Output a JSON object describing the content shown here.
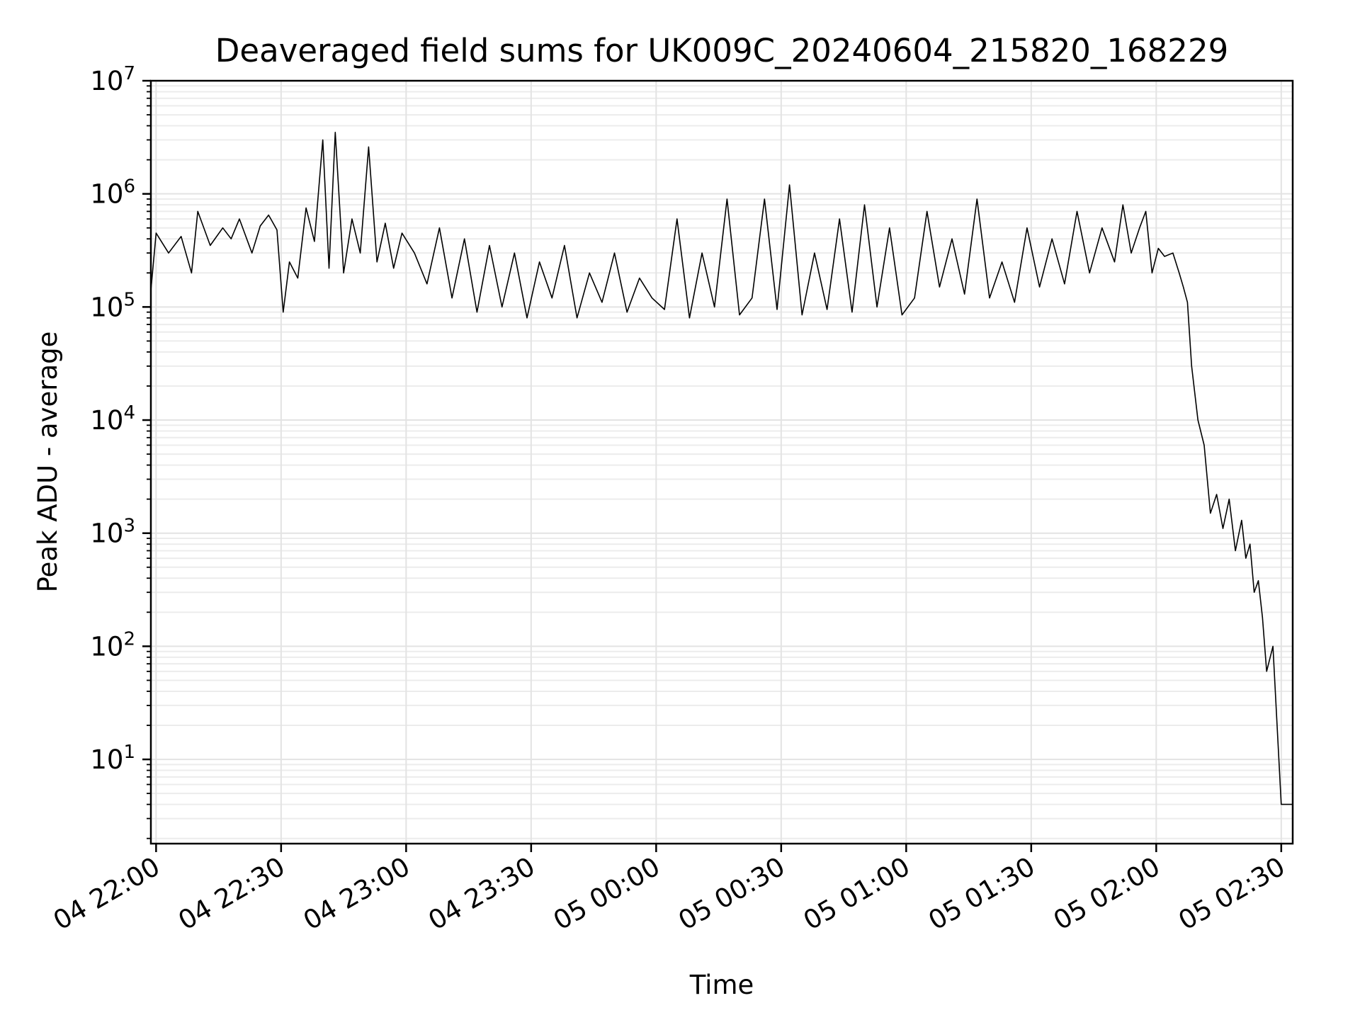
{
  "chart_data": {
    "type": "line",
    "title": "Deaveraged field sums for UK009C_20240604_215820_168229",
    "xlabel": "Time",
    "ylabel": "Peak ADU - average",
    "yscale": "log",
    "ylim": [
      1.8,
      10000000
    ],
    "xlim": [
      "04 21:58:45",
      "05 02:32:45"
    ],
    "grid": true,
    "line_color": "#000000",
    "x_ticks": [
      "04 22:00",
      "04 22:30",
      "04 23:00",
      "04 23:30",
      "05 00:00",
      "05 00:30",
      "05 01:00",
      "05 01:30",
      "05 02:00",
      "05 02:30"
    ],
    "y_ticks": [
      {
        "base": "10",
        "exp": "1",
        "value": 10
      },
      {
        "base": "10",
        "exp": "2",
        "value": 100
      },
      {
        "base": "10",
        "exp": "3",
        "value": 1000
      },
      {
        "base": "10",
        "exp": "4",
        "value": 10000
      },
      {
        "base": "10",
        "exp": "5",
        "value": 100000
      },
      {
        "base": "10",
        "exp": "6",
        "value": 1000000
      },
      {
        "base": "10",
        "exp": "7",
        "value": 10000000
      }
    ],
    "x": [
      "04 21:58:45",
      "04 22:00:00",
      "04 22:03:00",
      "04 22:06:00",
      "04 22:08:30",
      "04 22:10:00",
      "04 22:13:00",
      "04 22:16:00",
      "04 22:18:00",
      "04 22:20:00",
      "04 22:23:00",
      "04 22:25:00",
      "04 22:27:00",
      "04 22:29:00",
      "04 22:30:30",
      "04 22:32:00",
      "04 22:34:00",
      "04 22:36:00",
      "04 22:38:00",
      "04 22:40:00",
      "04 22:41:30",
      "04 22:43:00",
      "04 22:45:00",
      "04 22:47:00",
      "04 22:49:00",
      "04 22:51:00",
      "04 22:53:00",
      "04 22:55:00",
      "04 22:57:00",
      "04 22:59:00",
      "04 23:02:00",
      "04 23:05:00",
      "04 23:08:00",
      "04 23:11:00",
      "04 23:14:00",
      "04 23:17:00",
      "04 23:20:00",
      "04 23:23:00",
      "04 23:26:00",
      "04 23:29:00",
      "04 23:32:00",
      "04 23:35:00",
      "04 23:38:00",
      "04 23:41:00",
      "04 23:44:00",
      "04 23:47:00",
      "04 23:50:00",
      "04 23:53:00",
      "04 23:56:00",
      "04 23:59:00",
      "05 00:02:00",
      "05 00:05:00",
      "05 00:08:00",
      "05 00:11:00",
      "05 00:14:00",
      "05 00:17:00",
      "05 00:20:00",
      "05 00:23:00",
      "05 00:26:00",
      "05 00:29:00",
      "05 00:32:00",
      "05 00:35:00",
      "05 00:38:00",
      "05 00:41:00",
      "05 00:44:00",
      "05 00:47:00",
      "05 00:50:00",
      "05 00:53:00",
      "05 00:56:00",
      "05 00:59:00",
      "05 01:02:00",
      "05 01:05:00",
      "05 01:08:00",
      "05 01:11:00",
      "05 01:14:00",
      "05 01:17:00",
      "05 01:20:00",
      "05 01:23:00",
      "05 01:26:00",
      "05 01:29:00",
      "05 01:32:00",
      "05 01:35:00",
      "05 01:38:00",
      "05 01:41:00",
      "05 01:44:00",
      "05 01:47:00",
      "05 01:50:00",
      "05 01:52:00",
      "05 01:54:00",
      "05 01:56:00",
      "05 01:57:30",
      "05 01:59:00",
      "05 02:00:30",
      "05 02:02:00",
      "05 02:04:00",
      "05 02:05:30",
      "05 02:06:30",
      "05 02:07:30",
      "05 02:08:30",
      "05 02:10:00",
      "05 02:11:30",
      "05 02:13:00",
      "05 02:14:30",
      "05 02:16:00",
      "05 02:17:30",
      "05 02:19:00",
      "05 02:20:30",
      "05 02:21:30",
      "05 02:22:30",
      "05 02:23:30",
      "05 02:24:30",
      "05 02:25:30",
      "05 02:26:30",
      "05 02:28:00",
      "05 02:30:00",
      "05 02:32:45"
    ],
    "series": [
      {
        "values": [
          140000,
          450000,
          300000,
          420000,
          200000,
          700000,
          350000,
          500000,
          400000,
          600000,
          300000,
          520000,
          650000,
          480000,
          90000,
          250000,
          180000,
          750000,
          380000,
          3000000,
          220000,
          3500000,
          200000,
          600000,
          300000,
          2600000,
          250000,
          550000,
          220000,
          450000,
          300000,
          160000,
          500000,
          120000,
          400000,
          90000,
          350000,
          100000,
          300000,
          80000,
          250000,
          120000,
          350000,
          80000,
          200000,
          110000,
          300000,
          90000,
          180000,
          120000,
          95000,
          600000,
          80000,
          300000,
          100000,
          900000,
          85000,
          120000,
          900000,
          95000,
          1200000,
          85000,
          300000,
          95000,
          600000,
          90000,
          800000,
          100000,
          500000,
          85000,
          120000,
          700000,
          150000,
          400000,
          130000,
          900000,
          120000,
          250000,
          110000,
          500000,
          150000,
          400000,
          160000,
          700000,
          200000,
          500000,
          250000,
          800000,
          300000,
          500000,
          700000,
          200000,
          330000,
          280000,
          300000,
          200000,
          150000,
          110000,
          30000,
          10000,
          6000,
          1500,
          2200,
          1100,
          2000,
          700,
          1300,
          600,
          800,
          300,
          380,
          180,
          60,
          100,
          4,
          4
        ]
      }
    ]
  }
}
